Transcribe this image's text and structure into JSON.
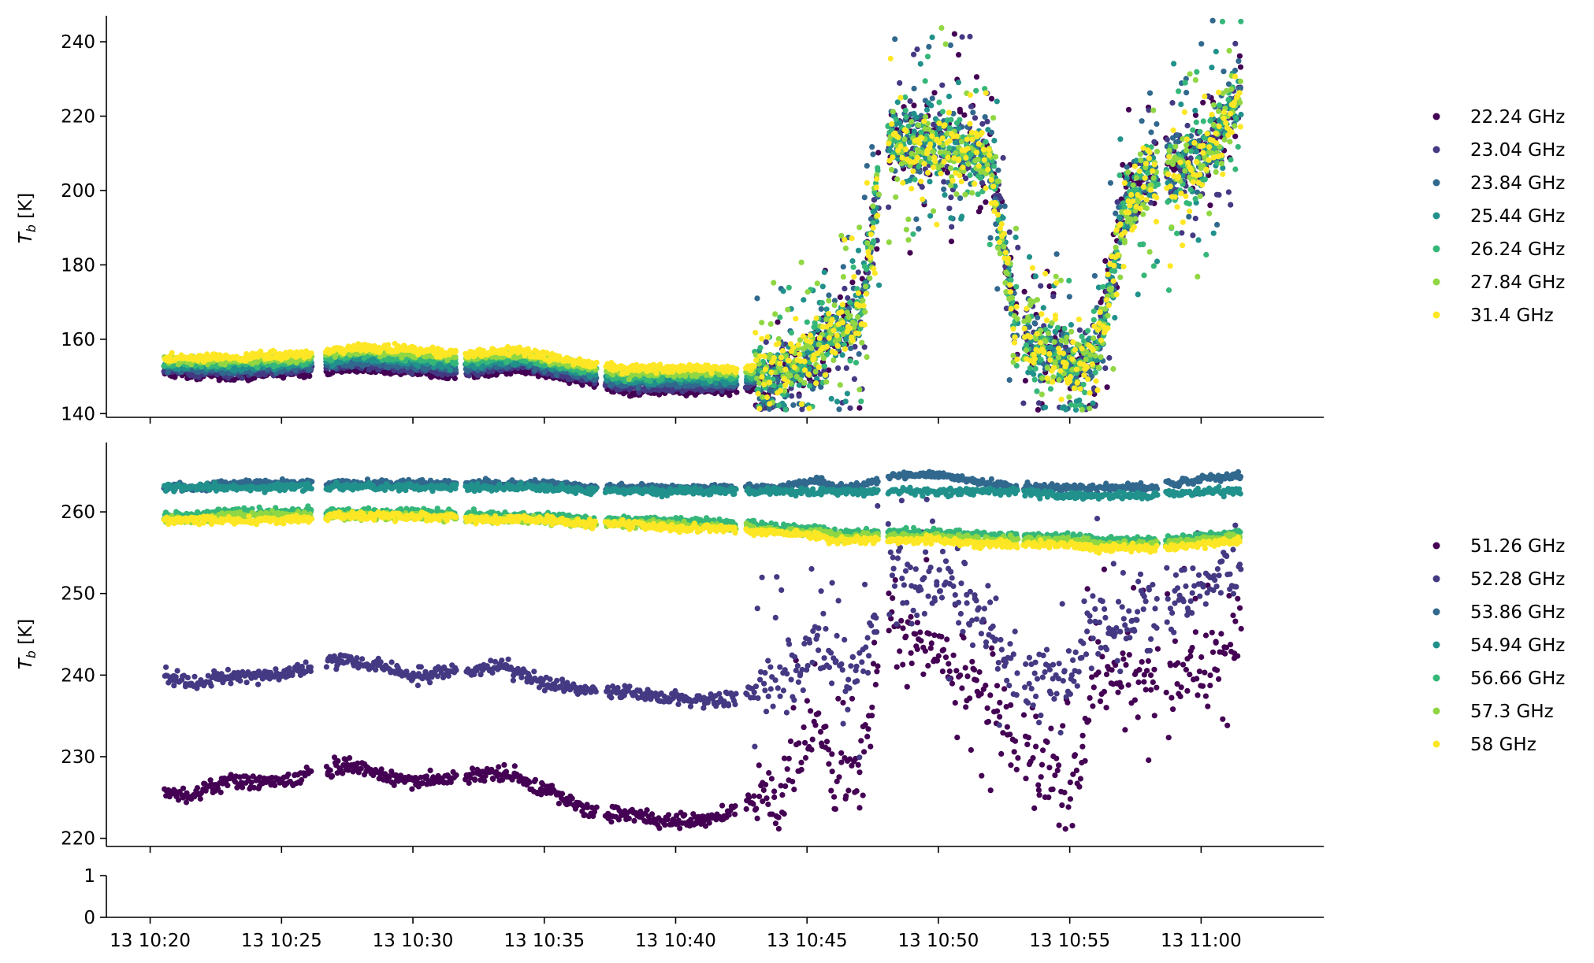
{
  "chart_data": [
    {
      "type": "scatter",
      "ylabel_main": "T",
      "ylabel_sub": "b",
      "ylabel_unit": " [K]",
      "ylim": [
        139,
        247
      ],
      "yticks": [
        140,
        160,
        180,
        200,
        220,
        240
      ],
      "grid": false,
      "legend_position": "right",
      "series": [
        {
          "name": "22.24 GHz",
          "color": "#440154"
        },
        {
          "name": "23.04 GHz",
          "color": "#443983"
        },
        {
          "name": "23.84 GHz",
          "color": "#31688e"
        },
        {
          "name": "25.44 GHz",
          "color": "#21918c"
        },
        {
          "name": "26.24 GHz",
          "color": "#35b779"
        },
        {
          "name": "27.84 GHz",
          "color": "#90d743"
        },
        {
          "name": "31.4 GHz",
          "color": "#fde725"
        }
      ],
      "trend_times": [
        "10:20:30",
        "10:23",
        "10:26",
        "10:28",
        "10:32",
        "10:34",
        "10:37",
        "10:38",
        "10:42",
        "10:44",
        "10:45",
        "10:46",
        "10:47",
        "10:48",
        "10:50",
        "10:52",
        "10:53",
        "10:55",
        "10:56",
        "10:57",
        "10:58",
        "11:00",
        "11:01:30"
      ],
      "trend_low_freq": [
        151,
        150,
        151,
        152,
        150,
        152,
        148,
        146,
        146,
        148,
        152,
        160,
        165,
        215,
        214,
        210,
        160,
        152,
        155,
        195,
        205,
        210,
        226
      ],
      "trend_high_freq": [
        155,
        155,
        156,
        158,
        156,
        157,
        153,
        152,
        152,
        153,
        156,
        162,
        166,
        213,
        211,
        207,
        160,
        153,
        156,
        192,
        202,
        207,
        224
      ]
    },
    {
      "type": "scatter",
      "ylabel_main": "T",
      "ylabel_sub": "b",
      "ylabel_unit": " [K]",
      "ylim": [
        219,
        268.5
      ],
      "yticks": [
        220,
        230,
        240,
        250,
        260
      ],
      "grid": false,
      "legend_position": "right",
      "series": [
        {
          "name": "51.26 GHz",
          "color": "#440154"
        },
        {
          "name": "52.28 GHz",
          "color": "#443983"
        },
        {
          "name": "53.86 GHz",
          "color": "#31688e"
        },
        {
          "name": "54.94 GHz",
          "color": "#21918c"
        },
        {
          "name": "56.66 GHz",
          "color": "#35b779"
        },
        {
          "name": "57.3 GHz",
          "color": "#90d743"
        },
        {
          "name": "58 GHz",
          "color": "#fde725"
        }
      ],
      "trend_times": [
        "10:20:30",
        "10:21:30",
        "10:23",
        "10:25",
        "10:27:30",
        "10:30",
        "10:33:30",
        "10:35",
        "10:37",
        "10:38",
        "10:40",
        "10:42",
        "10:43",
        "10:44",
        "10:45:30",
        "10:46",
        "10:47",
        "10:48",
        "10:49",
        "10:50",
        "10:52",
        "10:53",
        "10:55",
        "10:56",
        "10:57",
        "10:58",
        "11:00",
        "11:01:30"
      ],
      "trend_51_26": [
        226,
        225,
        227,
        227,
        229,
        227,
        228,
        226,
        223,
        223,
        222,
        223,
        225,
        225,
        235,
        228,
        228,
        247,
        244,
        243,
        236,
        232,
        224,
        240,
        238,
        239,
        241,
        246
      ],
      "trend_52_28": [
        240,
        239,
        240,
        240,
        242,
        240,
        241,
        239,
        238,
        238,
        237,
        237,
        238,
        239,
        245,
        240,
        240,
        253,
        251,
        251,
        245,
        240,
        238,
        248,
        245,
        248,
        250,
        254
      ],
      "trend_53_86": [
        263,
        263,
        263.5,
        263.5,
        263.5,
        263.5,
        263.5,
        263.5,
        263,
        263,
        263,
        263,
        263,
        263,
        264,
        263,
        263,
        264.5,
        264.5,
        264.5,
        263.5,
        263,
        263,
        263,
        263,
        263,
        264,
        264.5
      ],
      "trend_54_94": [
        263,
        263,
        263,
        263,
        263,
        263,
        263,
        263,
        262.5,
        262.5,
        262.5,
        262.5,
        262.5,
        262.5,
        262.5,
        262.5,
        262.5,
        262.5,
        262.5,
        262.5,
        262.5,
        262.5,
        262,
        262,
        262,
        262,
        262.5,
        262.5
      ],
      "trend_56_66": [
        259.5,
        259.5,
        260,
        260,
        260,
        260,
        259.5,
        259.5,
        259,
        259,
        259,
        258.5,
        258.5,
        258,
        258,
        257.5,
        257.5,
        257.5,
        257.5,
        257.5,
        257,
        257,
        257,
        256.5,
        256.5,
        256.5,
        257,
        257.5
      ],
      "trend_57_3": [
        259,
        259,
        259.5,
        259.5,
        259.5,
        259.5,
        259,
        259,
        258.5,
        258.5,
        258.5,
        258,
        258,
        257.5,
        257.5,
        257,
        257,
        257,
        257,
        257,
        256.5,
        256.5,
        256.5,
        256,
        256,
        256,
        256.5,
        257
      ],
      "trend_58": [
        259,
        259,
        259,
        259,
        259.5,
        259.5,
        259,
        259,
        258.5,
        258.5,
        258,
        258,
        257.5,
        257.5,
        257,
        256.5,
        256.5,
        256.5,
        256.5,
        256.5,
        256,
        256,
        256,
        255.5,
        255.5,
        255.5,
        256,
        256.5
      ]
    },
    {
      "type": "scatter",
      "ylim": [
        0,
        1
      ],
      "yticks": [
        0,
        1
      ],
      "grid": false,
      "series": []
    }
  ],
  "shared_x": {
    "xlim": [
      "10:18:20",
      "11:04:40"
    ],
    "ticks": [
      {
        "t": "10:20",
        "label": "13 10:20"
      },
      {
        "t": "10:25",
        "label": "13 10:25"
      },
      {
        "t": "10:30",
        "label": "13 10:30"
      },
      {
        "t": "10:35",
        "label": "13 10:35"
      },
      {
        "t": "10:40",
        "label": "13 10:40"
      },
      {
        "t": "10:45",
        "label": "13 10:45"
      },
      {
        "t": "10:50",
        "label": "13 10:50"
      },
      {
        "t": "10:55",
        "label": "13 10:55"
      },
      {
        "t": "11:00",
        "label": "13 11:00"
      }
    ],
    "data_gaps": [
      [
        "10:20",
        "10:20:30"
      ],
      [
        "10:26:10",
        "10:26:40"
      ],
      [
        "10:31:40",
        "10:32:00"
      ],
      [
        "10:37:00",
        "10:37:20"
      ],
      [
        "10:42:20",
        "10:42:40"
      ],
      [
        "10:47:45",
        "10:48:05"
      ],
      [
        "10:53:00",
        "10:53:15"
      ],
      [
        "10:58:20",
        "10:58:40"
      ]
    ]
  }
}
